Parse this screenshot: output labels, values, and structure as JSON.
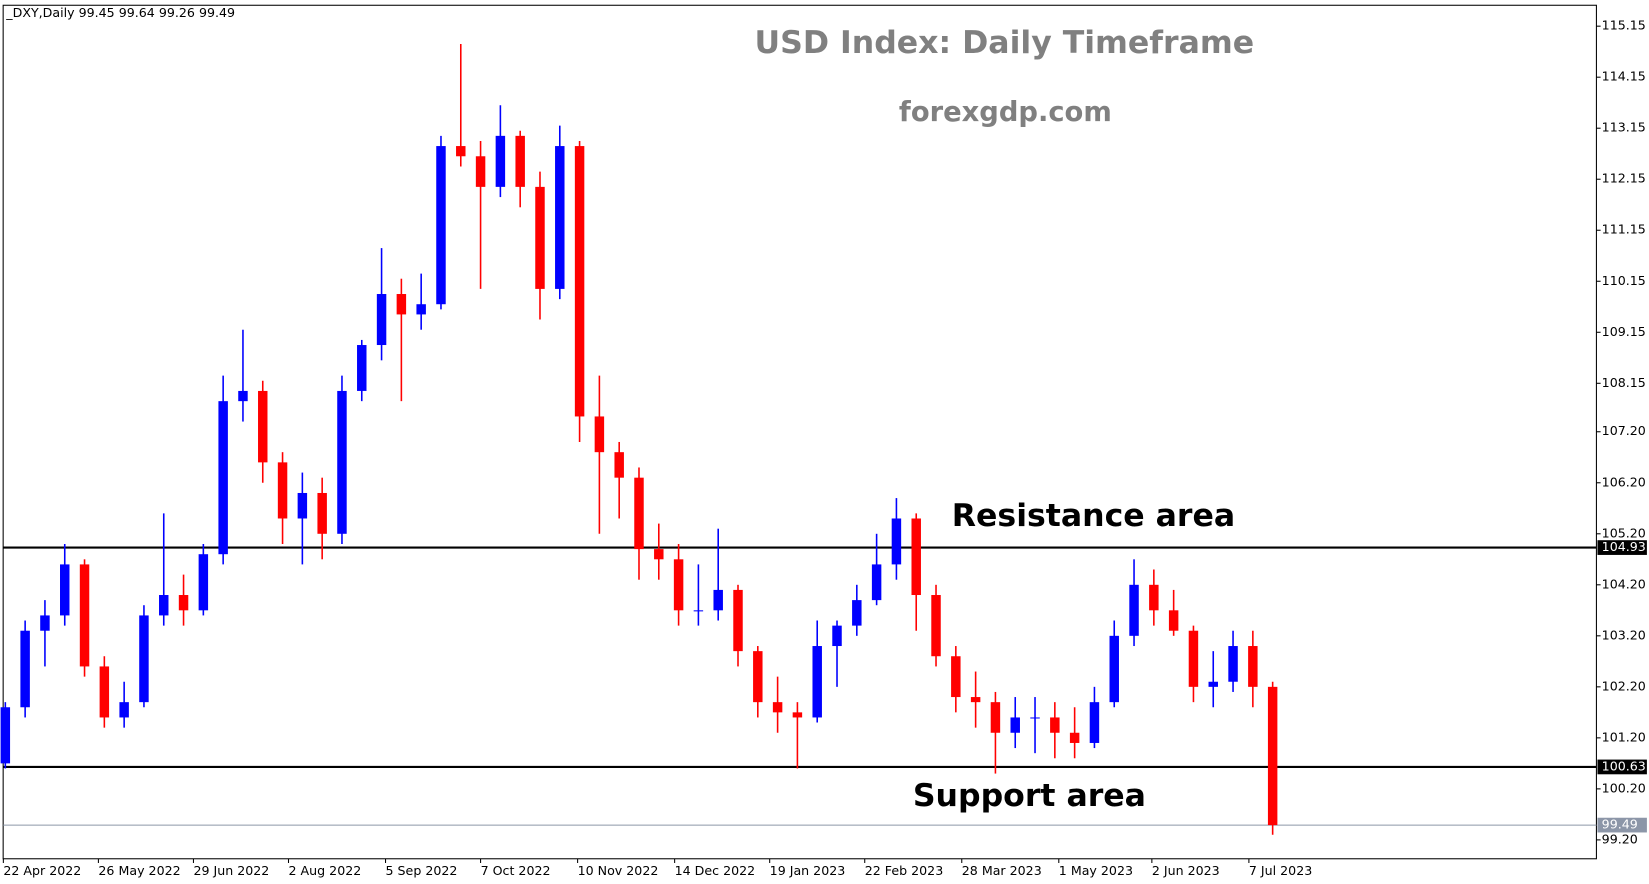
{
  "chart_data": {
    "type": "candlestick",
    "info": "_DXY,Daily  99.45 99.64 99.26 99.49",
    "title": "USD Index: Daily Timeframe",
    "subtitle": "forexgdp.com",
    "annotations": [
      {
        "text": "Resistance area"
      },
      {
        "text": "Support area"
      }
    ],
    "up_color": "#0000ff",
    "down_color": "#ff0000",
    "open": [
      100.7,
      101.8,
      103.3,
      103.6,
      104.6,
      102.6,
      101.6,
      101.9,
      103.6,
      104.0,
      103.7,
      104.8,
      107.8,
      108.0,
      106.6,
      105.5,
      106.0,
      105.2,
      108.0,
      108.9,
      109.9,
      109.5,
      109.7,
      112.8,
      112.6,
      112.0,
      113.0,
      112.0,
      110.0,
      112.8,
      107.5,
      106.8,
      106.3,
      104.9,
      104.7,
      103.7,
      103.7,
      104.1,
      102.9,
      101.9,
      101.7,
      101.6,
      103.0,
      103.4,
      103.9,
      104.6,
      105.5,
      104.0,
      102.8,
      102.0,
      101.9,
      101.3,
      101.6,
      101.6,
      101.3,
      101.1,
      101.9,
      103.2,
      104.2,
      103.7,
      103.3,
      102.2,
      102.3,
      103.0,
      102.2
    ],
    "high": [
      101.9,
      103.5,
      103.9,
      105.0,
      104.7,
      102.8,
      102.3,
      103.8,
      105.6,
      104.4,
      105.0,
      108.3,
      109.2,
      108.2,
      106.8,
      106.4,
      106.3,
      108.3,
      109.0,
      110.8,
      110.2,
      110.3,
      113.0,
      114.8,
      112.9,
      113.6,
      113.1,
      112.3,
      113.2,
      112.9,
      108.3,
      107.0,
      106.5,
      105.4,
      105.0,
      104.6,
      105.3,
      104.2,
      103.0,
      102.4,
      101.9,
      103.5,
      103.5,
      104.2,
      105.2,
      105.9,
      105.6,
      104.2,
      103.0,
      102.5,
      102.1,
      102.0,
      102.0,
      101.9,
      101.8,
      102.2,
      103.5,
      104.7,
      104.5,
      104.1,
      103.4,
      102.9,
      103.3,
      103.3,
      102.3
    ],
    "low": [
      100.6,
      101.6,
      102.6,
      103.4,
      102.4,
      101.4,
      101.4,
      101.8,
      103.4,
      103.4,
      103.6,
      104.6,
      107.4,
      106.2,
      105.0,
      104.6,
      104.7,
      105.0,
      107.8,
      108.6,
      107.8,
      109.2,
      109.6,
      112.4,
      110.0,
      111.8,
      111.6,
      109.4,
      109.8,
      107.0,
      105.2,
      105.5,
      104.3,
      104.3,
      103.4,
      103.4,
      103.5,
      102.6,
      101.6,
      101.3,
      100.6,
      101.5,
      102.2,
      103.2,
      103.8,
      104.3,
      103.3,
      102.6,
      101.7,
      101.4,
      100.5,
      101.0,
      100.9,
      100.8,
      100.8,
      101.0,
      101.8,
      103.0,
      103.4,
      103.2,
      101.9,
      101.8,
      102.1,
      101.8,
      99.3
    ],
    "close": [
      101.8,
      103.3,
      103.6,
      104.6,
      102.6,
      101.6,
      101.9,
      103.6,
      104.0,
      103.7,
      104.8,
      107.8,
      108.0,
      106.6,
      105.5,
      106.0,
      105.2,
      108.0,
      108.9,
      109.9,
      109.5,
      109.7,
      112.8,
      112.6,
      112.0,
      113.0,
      112.0,
      110.0,
      112.8,
      107.5,
      106.8,
      106.3,
      104.9,
      104.7,
      103.7,
      103.7,
      104.1,
      102.9,
      101.9,
      101.7,
      101.6,
      103.0,
      103.4,
      103.9,
      104.6,
      105.5,
      104.0,
      102.8,
      102.0,
      101.9,
      101.3,
      101.6,
      101.6,
      101.3,
      101.1,
      101.9,
      103.2,
      104.2,
      103.7,
      103.3,
      102.2,
      102.3,
      103.0,
      102.2,
      99.49
    ],
    "levels": [
      {
        "value": 104.93,
        "color": "#000000"
      },
      {
        "value": 100.63,
        "color": "#000000"
      },
      {
        "value": 99.49,
        "color": "#8c96a8"
      }
    ],
    "xlim": [
      -0.11,
      80.35
    ],
    "xticks": [
      {
        "value": -0.1,
        "label": "22 Apr 2022"
      },
      {
        "value": 4.7,
        "label": "26 May 2022"
      },
      {
        "value": 9.5,
        "label": "29 Jun 2022"
      },
      {
        "value": 14.3,
        "label": "2 Aug 2022"
      },
      {
        "value": 19.2,
        "label": "5 Sep 2022"
      },
      {
        "value": 24.0,
        "label": "7 Oct 2022"
      },
      {
        "value": 28.9,
        "label": "10 Nov 2022"
      },
      {
        "value": 33.8,
        "label": "14 Dec 2022"
      },
      {
        "value": 38.6,
        "label": "19 Jan 2023"
      },
      {
        "value": 43.4,
        "label": "22 Feb 2023"
      },
      {
        "value": 48.3,
        "label": "28 Mar 2023"
      },
      {
        "value": 53.2,
        "label": "1 May 2023"
      },
      {
        "value": 57.9,
        "label": "2 Jun 2023"
      },
      {
        "value": 62.8,
        "label": "7 Jul 2023"
      }
    ],
    "ylim": [
      98.83,
      115.56
    ],
    "yticks": [
      115.15,
      114.15,
      113.15,
      112.15,
      111.15,
      110.15,
      109.15,
      108.15,
      {
        "value": 107.2,
        "label": "107.20"
      },
      {
        "value": 106.2,
        "label": "106.20"
      },
      {
        "value": 105.2,
        "label": "105.20"
      },
      {
        "value": 104.2,
        "label": "104.20"
      },
      {
        "value": 103.2,
        "label": "103.20"
      },
      {
        "value": 102.2,
        "label": "102.20"
      },
      {
        "value": 101.2,
        "label": "101.20"
      },
      {
        "value": 100.2,
        "label": "100.20"
      },
      {
        "value": 99.2,
        "label": "99.20"
      }
    ]
  }
}
